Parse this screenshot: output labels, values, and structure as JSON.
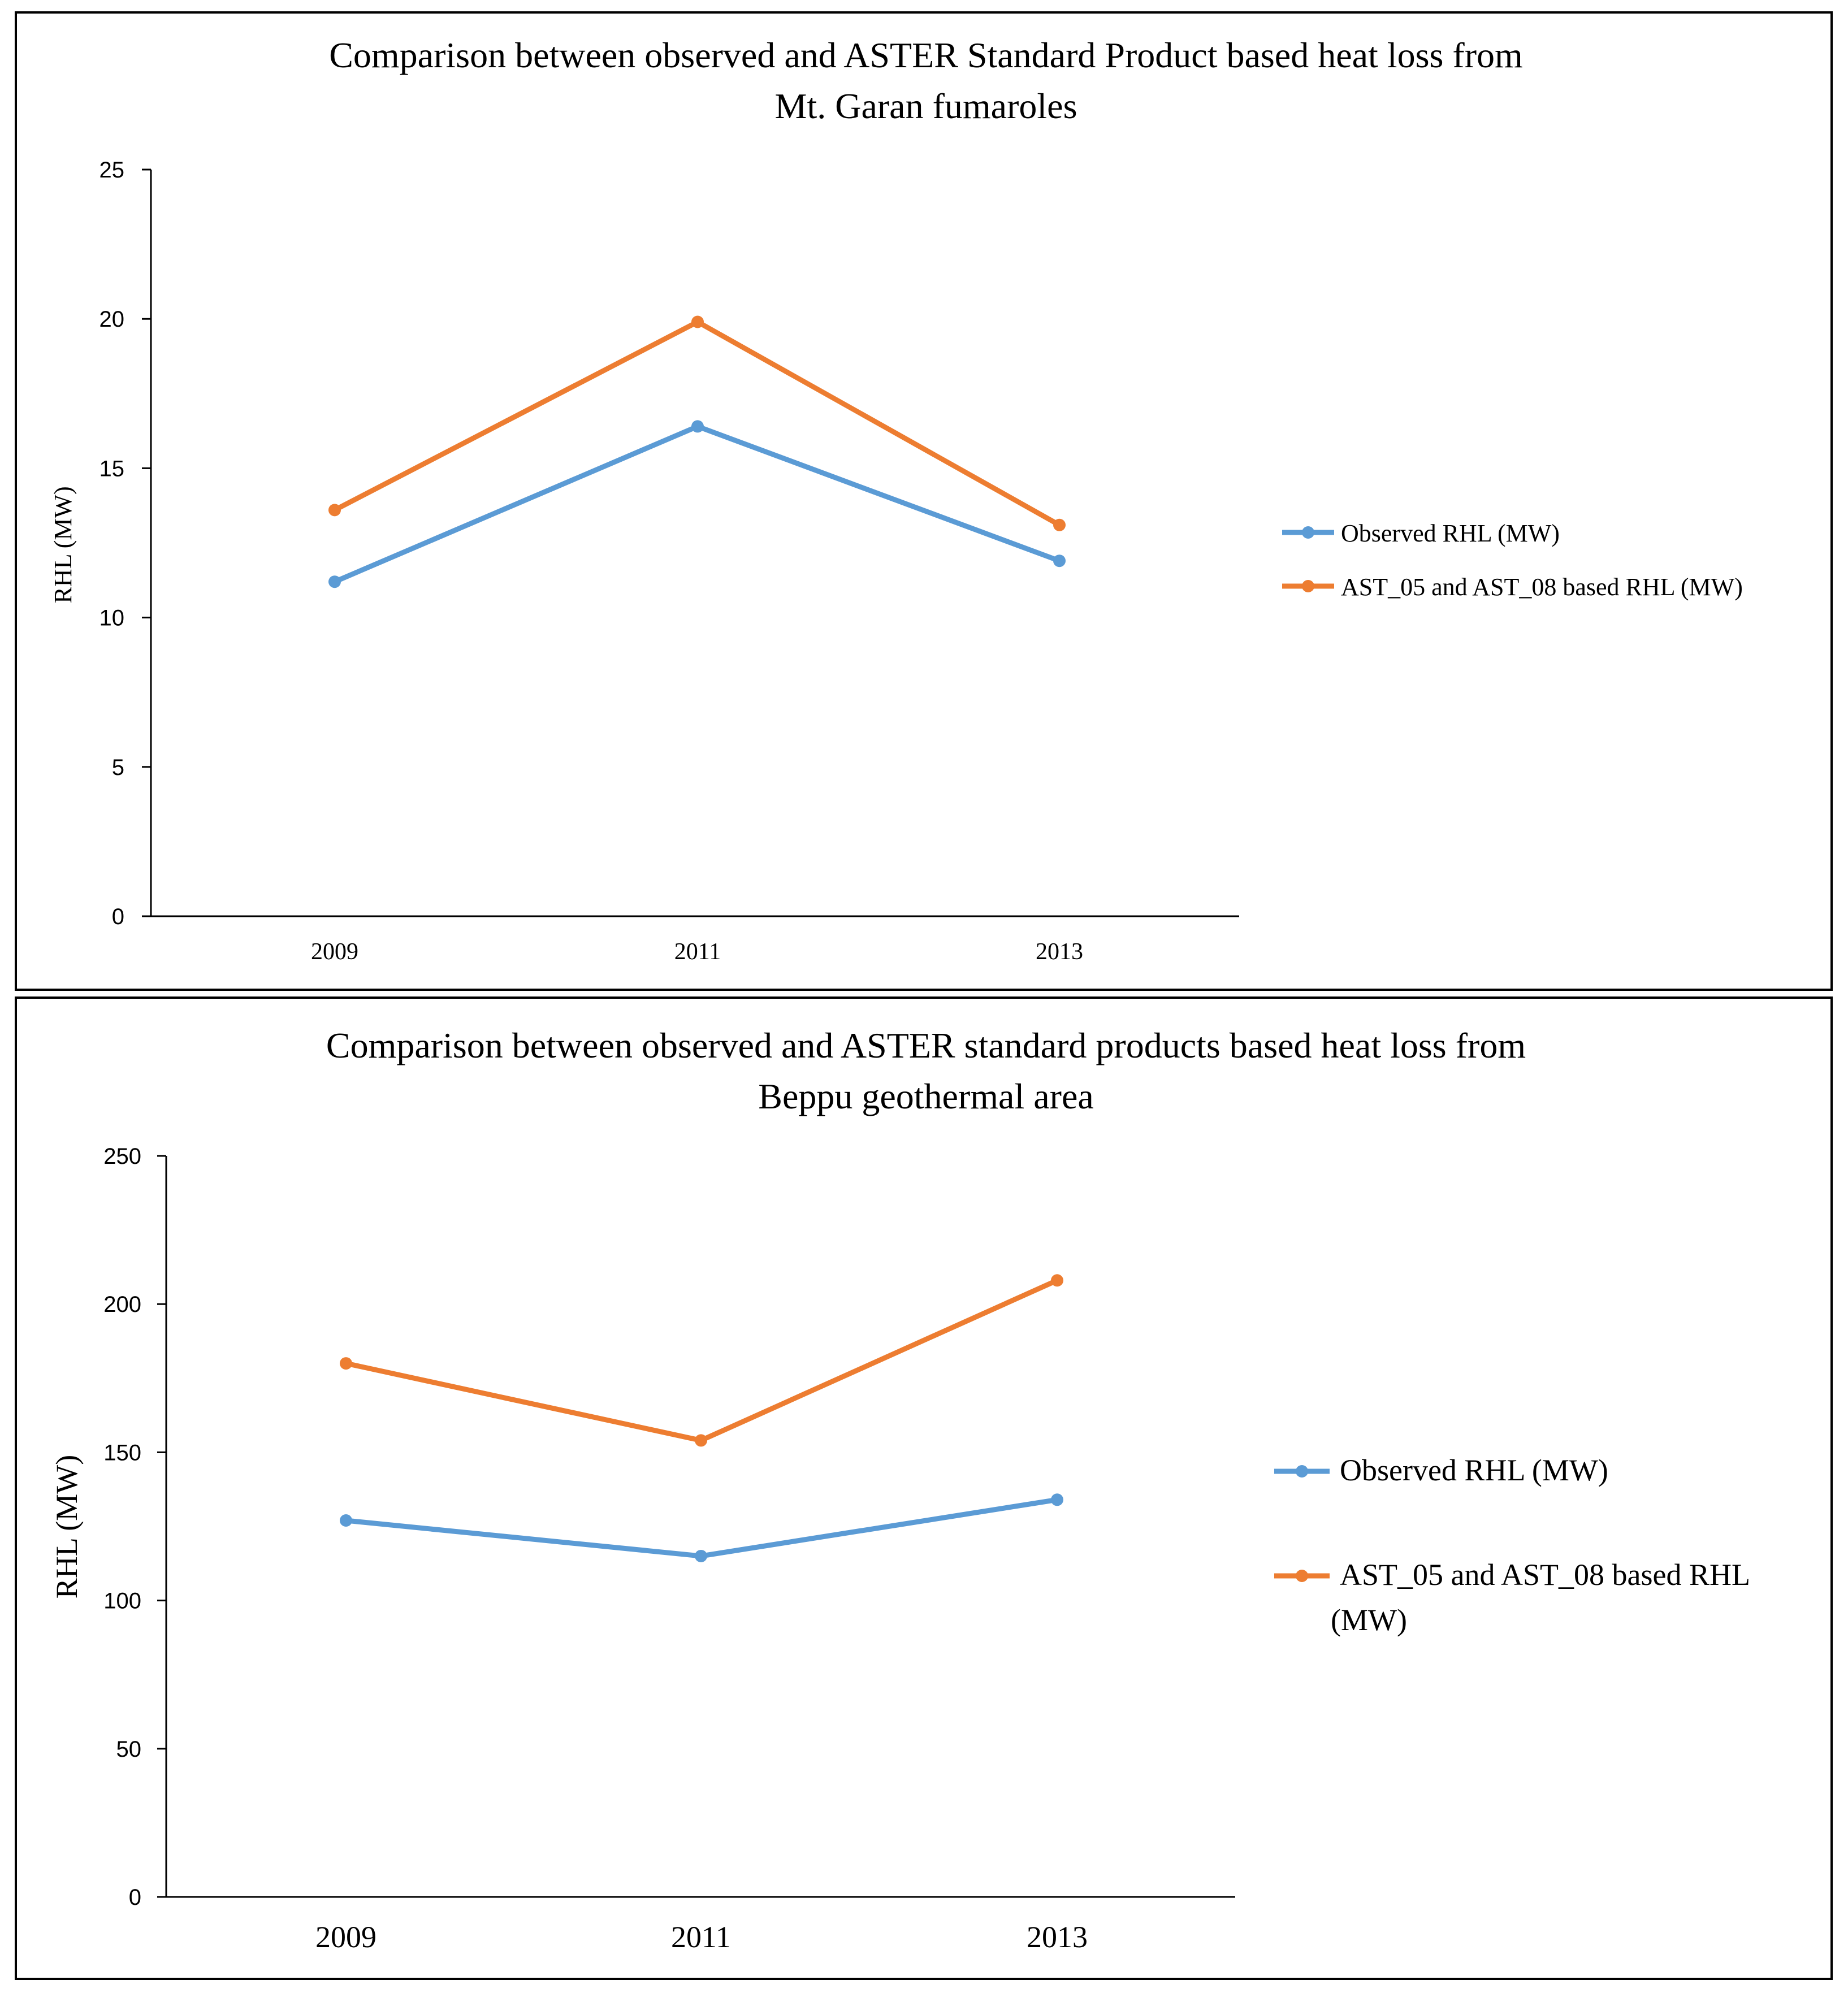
{
  "chart_data": [
    {
      "type": "line",
      "title": "Comparison  between observed and ASTER Standard Product based heat loss from",
      "title_line2": "Mt. Garan fumaroles",
      "xlabel": "",
      "ylabel": "RHL (MW)",
      "categories": [
        "2009",
        "2011",
        "2013"
      ],
      "ylim": [
        0,
        25
      ],
      "yticks": [
        0,
        5,
        10,
        15,
        20,
        25
      ],
      "grid": false,
      "legend_position": "right",
      "series": [
        {
          "name": "Observed RHL (MW)",
          "color": "#5B9BD5",
          "values": [
            11.2,
            16.4,
            11.9
          ]
        },
        {
          "name": "AST_05 and AST_08 based RHL (MW)",
          "color": "#ED7D31",
          "values": [
            13.6,
            19.9,
            13.1
          ]
        }
      ]
    },
    {
      "type": "line",
      "title": "Comparison  between observed and ASTER standard products based heat loss from",
      "title_line2": "Beppu geothermal area",
      "xlabel": "",
      "ylabel": "RHL (MW)",
      "categories": [
        "2009",
        "2011",
        "2013"
      ],
      "ylim": [
        0,
        250
      ],
      "yticks": [
        0,
        50,
        100,
        150,
        200,
        250
      ],
      "grid": false,
      "legend_position": "right",
      "series": [
        {
          "name": "Observed RHL (MW)",
          "color": "#5B9BD5",
          "values": [
            127,
            115,
            134
          ]
        },
        {
          "name": "AST_05 and AST_08 based RHL",
          "name_line2": "(MW)",
          "color": "#ED7D31",
          "values": [
            180,
            154,
            208
          ]
        }
      ]
    }
  ]
}
